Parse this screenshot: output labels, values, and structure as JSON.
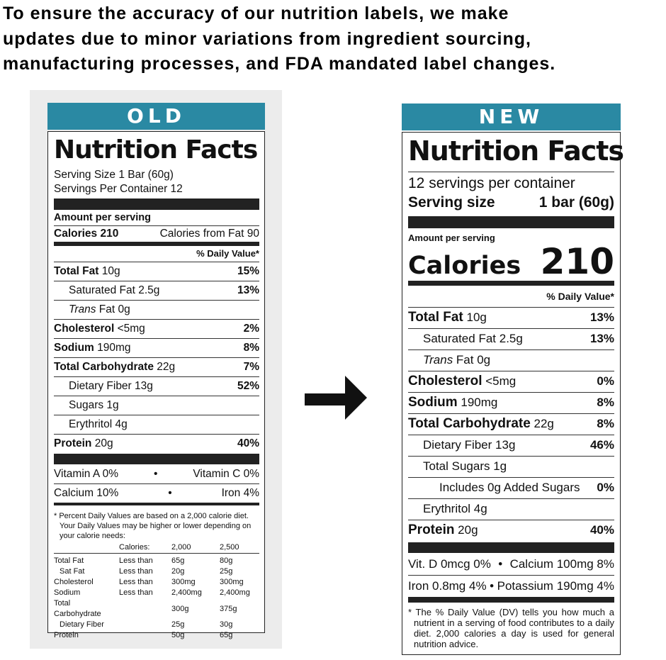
{
  "headline": [
    "To ensure the accuracy of our nutrition labels, we make",
    "updates due to minor variations from ingredient sourcing,",
    "manufacturing processes, and FDA mandated label changes."
  ],
  "old": {
    "tab": "OLD",
    "title": "Nutrition Facts",
    "serving_size": "Serving Size 1 Bar (60g)",
    "servings": "Servings Per Container 12",
    "amount": "Amount per serving",
    "calories": "Calories 210",
    "calories_fat": "Calories from Fat 90",
    "dv_header": "% Daily Value*",
    "rows": [
      {
        "name": "Total Fat",
        "amt": " 10g",
        "dv": "15%",
        "bold": true,
        "indent": 0
      },
      {
        "name": "Saturated Fat",
        "amt": " 2.5g",
        "dv": "13%",
        "bold": false,
        "indent": 1
      },
      {
        "name": "Trans",
        "amt": " Fat 0g",
        "dv": "",
        "bold": false,
        "indent": 1,
        "italic": true
      },
      {
        "name": "Cholesterol",
        "amt": " <5mg",
        "dv": "2%",
        "bold": true,
        "indent": 0
      },
      {
        "name": "Sodium",
        "amt": " 190mg",
        "dv": "8%",
        "bold": true,
        "indent": 0
      },
      {
        "name": "Total Carbohydrate",
        "amt": " 22g",
        "dv": "7%",
        "bold": true,
        "indent": 0
      },
      {
        "name": "Dietary Fiber",
        "amt": " 13g",
        "dv": "52%",
        "bold": false,
        "indent": 1
      },
      {
        "name": "Sugars",
        "amt": " 1g",
        "dv": "",
        "bold": false,
        "indent": 1
      },
      {
        "name": "Erythritol",
        "amt": " 4g",
        "dv": "",
        "bold": false,
        "indent": 1
      },
      {
        "name": "Protein",
        "amt": " 20g",
        "dv": "40%",
        "bold": true,
        "indent": 0
      }
    ],
    "vitamins": [
      [
        "Vitamin A 0%",
        "Vitamin C 0%"
      ],
      [
        "Calcium 10%",
        "Iron 4%"
      ]
    ],
    "footnote": "* Percent Daily Values are based on a 2,000 calorie diet. Your Daily Values may be higher or lower depending on your calorie needs:",
    "table_header": [
      "",
      "Calories:",
      "2,000",
      "2,500"
    ],
    "table": [
      [
        "Total Fat",
        "Less than",
        "65g",
        "80g"
      ],
      [
        "Sat Fat",
        "Less than",
        "20g",
        "25g"
      ],
      [
        "Cholesterol",
        "Less than",
        "300mg",
        "300mg"
      ],
      [
        "Sodium",
        "Less than",
        "2,400mg",
        "2,400mg"
      ],
      [
        "Total Carbohydrate",
        "",
        "300g",
        "375g"
      ],
      [
        "Dietary Fiber",
        "",
        "25g",
        "30g"
      ],
      [
        "Protein",
        "",
        "50g",
        "65g"
      ]
    ]
  },
  "new": {
    "tab": "NEW",
    "title": "Nutrition Facts",
    "servings": "12 servings per container",
    "serving_size_label": "Serving size",
    "serving_size_value": "1 bar (60g)",
    "amount": "Amount per serving",
    "calories_label": "Calories",
    "calories_value": "210",
    "dv_header": "% Daily Value*",
    "rows": [
      {
        "name": "Total Fat",
        "amt": " 10g",
        "dv": "13%",
        "bold": true,
        "indent": 0
      },
      {
        "name": "Saturated Fat",
        "amt": " 2.5g",
        "dv": "13%",
        "bold": false,
        "indent": 1
      },
      {
        "name": "Trans",
        "amt": " Fat 0g",
        "dv": "",
        "bold": false,
        "indent": 1,
        "italic": true
      },
      {
        "name": "Cholesterol",
        "amt": " <5mg",
        "dv": "0%",
        "bold": true,
        "indent": 0
      },
      {
        "name": "Sodium",
        "amt": " 190mg",
        "dv": "8%",
        "bold": true,
        "indent": 0
      },
      {
        "name": "Total Carbohydrate",
        "amt": " 22g",
        "dv": "8%",
        "bold": true,
        "indent": 0
      },
      {
        "name": "Dietary Fiber",
        "amt": " 13g",
        "dv": "46%",
        "bold": false,
        "indent": 1
      },
      {
        "name": "Total Sugars",
        "amt": " 1g",
        "dv": "",
        "bold": false,
        "indent": 1
      },
      {
        "name": "Includes 0g Added Sugars",
        "amt": "",
        "dv": "0%",
        "bold": false,
        "indent": 2
      },
      {
        "name": "Erythritol",
        "amt": " 4g",
        "dv": "",
        "bold": false,
        "indent": 1
      },
      {
        "name": "Protein",
        "amt": " 20g",
        "dv": "40%",
        "bold": true,
        "indent": 0
      }
    ],
    "vitamins": [
      [
        "Vit. D 0mcg 0%",
        "Calcium 100mg 8%"
      ],
      [
        "Iron 0.8mg 4%",
        "Potassium 190mg 4%"
      ]
    ],
    "footnote": "* The % Daily Value (DV) tells you how much a nutrient in a serving of food contributes to a daily diet. 2,000 calories a day is used for general nutrition advice."
  },
  "colors": {
    "tab": "#2a89a3",
    "panel": "#ececec"
  }
}
